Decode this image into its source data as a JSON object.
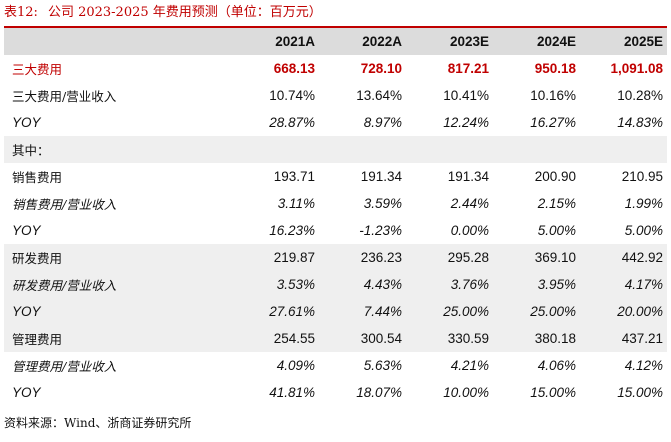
{
  "title": {
    "label": "表12:",
    "text": "公司 2023-2025 年费用预测（单位：百万元）"
  },
  "table": {
    "headers": [
      "",
      "2021A",
      "2022A",
      "2023E",
      "2024E",
      "2025E"
    ],
    "rows": [
      {
        "label": "三大费用",
        "values": [
          "668.13",
          "728.10",
          "817.21",
          "950.18",
          "1,091.08"
        ]
      },
      {
        "label": "三大费用/营业收入",
        "values": [
          "10.74%",
          "13.64%",
          "10.41%",
          "10.16%",
          "10.28%"
        ]
      },
      {
        "label": "YOY",
        "values": [
          "28.87%",
          "8.97%",
          "12.24%",
          "16.27%",
          "14.83%"
        ]
      },
      {
        "label": "其中：",
        "values": [
          "",
          "",
          "",
          "",
          ""
        ]
      },
      {
        "label": "销售费用",
        "values": [
          "193.71",
          "191.34",
          "191.34",
          "200.90",
          "210.95"
        ]
      },
      {
        "label": "销售费用/营业收入",
        "values": [
          "3.11%",
          "3.59%",
          "2.44%",
          "2.15%",
          "1.99%"
        ]
      },
      {
        "label": "YOY",
        "values": [
          "16.23%",
          "-1.23%",
          "0.00%",
          "5.00%",
          "5.00%"
        ]
      },
      {
        "label": "研发费用",
        "values": [
          "219.87",
          "236.23",
          "295.28",
          "369.10",
          "442.92"
        ]
      },
      {
        "label": "研发费用/营业收入",
        "values": [
          "3.53%",
          "4.43%",
          "3.76%",
          "3.95%",
          "4.17%"
        ]
      },
      {
        "label": "YOY",
        "values": [
          "27.61%",
          "7.44%",
          "25.00%",
          "25.00%",
          "20.00%"
        ]
      },
      {
        "label": "管理费用",
        "values": [
          "254.55",
          "300.54",
          "330.59",
          "380.18",
          "437.21"
        ]
      },
      {
        "label": "管理费用/营业收入",
        "values": [
          "4.09%",
          "5.63%",
          "4.21%",
          "4.06%",
          "4.12%"
        ]
      },
      {
        "label": "YOY",
        "values": [
          "41.81%",
          "18.07%",
          "10.00%",
          "15.00%",
          "15.00%"
        ]
      }
    ]
  },
  "source": "资料来源：Wind、浙商证券研究所",
  "colors": {
    "accent": "#c00000",
    "header_bg": "#dcdcdc",
    "row_shade": "#efefef"
  }
}
